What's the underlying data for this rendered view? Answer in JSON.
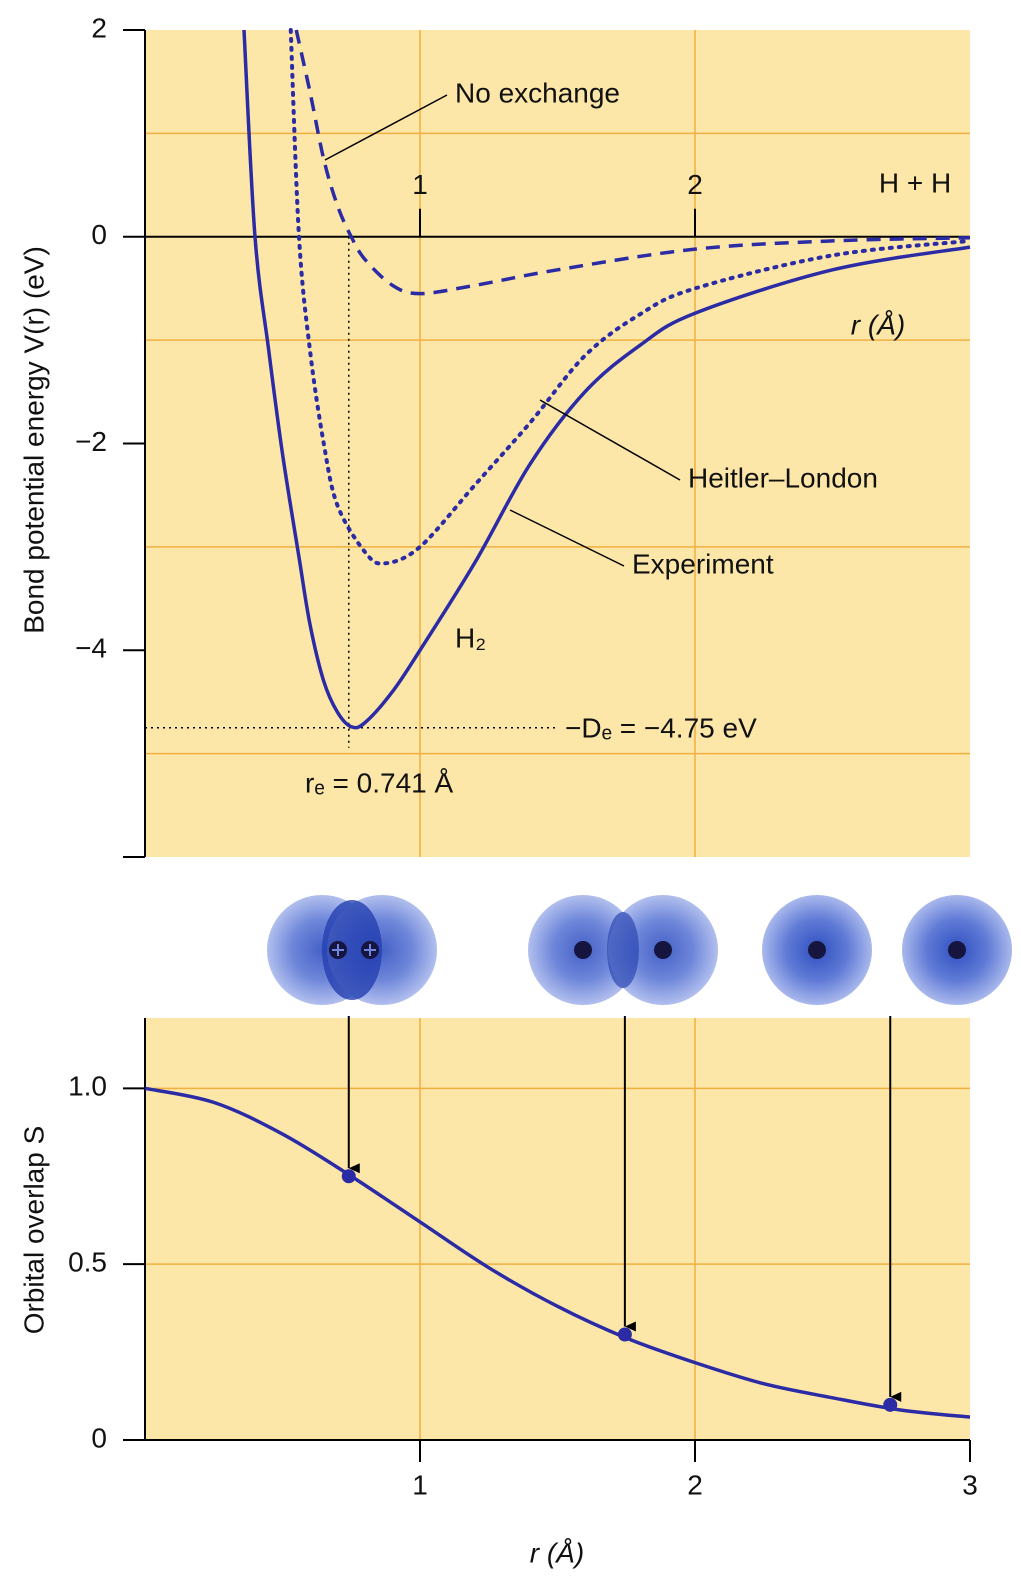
{
  "chart_data": [
    {
      "type": "line",
      "y_label": "Bond potential energy V(r) (eV)",
      "x_label": "r (Å)",
      "xlim": [
        0,
        3
      ],
      "ylim": [
        -6,
        2
      ],
      "xticks": [
        1,
        2
      ],
      "yticks": [
        2,
        0,
        {
          "value": -2,
          "label": "−2"
        },
        {
          "value": -4,
          "label": "−4"
        }
      ],
      "xgrid": [
        1,
        2
      ],
      "ygrid": [
        1,
        -1,
        -3,
        -5
      ],
      "series": [
        {
          "name": "Experiment",
          "color": "#2b2ba6",
          "style": "solid",
          "x": [
            0.36,
            0.4,
            0.45,
            0.5,
            0.56,
            0.6,
            0.65,
            0.7,
            0.75,
            0.8,
            0.9,
            1.0,
            1.2,
            1.4,
            1.6,
            1.8,
            2.0,
            2.5,
            3.0
          ],
          "values": [
            2,
            0,
            -1.1,
            -2.1,
            -3.1,
            -3.75,
            -4.3,
            -4.6,
            -4.74,
            -4.7,
            -4.4,
            -4.0,
            -3.15,
            -2.2,
            -1.5,
            -1.05,
            -0.74,
            -0.32,
            -0.1
          ]
        },
        {
          "name": "Heitler–London",
          "color": "#2b2ba6",
          "style": "dotted",
          "x": [
            0.53,
            0.56,
            0.6,
            0.65,
            0.7,
            0.8,
            0.87,
            1.0,
            1.2,
            1.4,
            1.6,
            1.8,
            2.0,
            2.5,
            3.0
          ],
          "values": [
            2,
            0,
            -1.1,
            -2.0,
            -2.6,
            -3.05,
            -3.16,
            -3.0,
            -2.4,
            -1.8,
            -1.15,
            -0.75,
            -0.5,
            -0.18,
            -0.04
          ]
        },
        {
          "name": "No exchange",
          "color": "#2b2ba6",
          "style": "dashed",
          "x": [
            0.55,
            0.6,
            0.65,
            0.7,
            0.75,
            0.8,
            0.9,
            1.0,
            1.2,
            1.5,
            2.0,
            2.5,
            3.0
          ],
          "values": [
            2,
            1.4,
            0.75,
            0.3,
            0,
            -0.22,
            -0.47,
            -0.55,
            -0.47,
            -0.32,
            -0.12,
            -0.04,
            -0.01
          ]
        }
      ],
      "reference": {
        "x": 0.741,
        "y": -4.75
      },
      "annotations": [
        "H + H",
        "H₂",
        "−Dₑ = −4.75 eV",
        "rₑ = 0.741 Å"
      ]
    },
    {
      "type": "line",
      "y_label": "Orbital overlap S",
      "x_label": "r (Å)",
      "xlim": [
        0,
        3
      ],
      "ylim": [
        0,
        1.2
      ],
      "xticks": [
        1,
        2,
        3
      ],
      "yticks": [
        0,
        0.5,
        {
          "value": 1,
          "label": "1.0"
        }
      ],
      "xgrid": [
        1,
        2
      ],
      "ygrid": [
        0.5,
        1
      ],
      "series": [
        {
          "color": "#2b2ba6",
          "style": "solid",
          "x": [
            0,
            0.25,
            0.5,
            0.75,
            1.0,
            1.25,
            1.5,
            1.75,
            2.0,
            2.25,
            2.5,
            2.75,
            3.0
          ],
          "values": [
            1.0,
            0.96,
            0.87,
            0.75,
            0.62,
            0.49,
            0.38,
            0.29,
            0.22,
            0.16,
            0.12,
            0.085,
            0.065
          ]
        }
      ],
      "points": {
        "x": [
          0.741,
          1.745,
          2.71
        ],
        "values": [
          0.75,
          0.3,
          0.1
        ]
      }
    }
  ]
}
